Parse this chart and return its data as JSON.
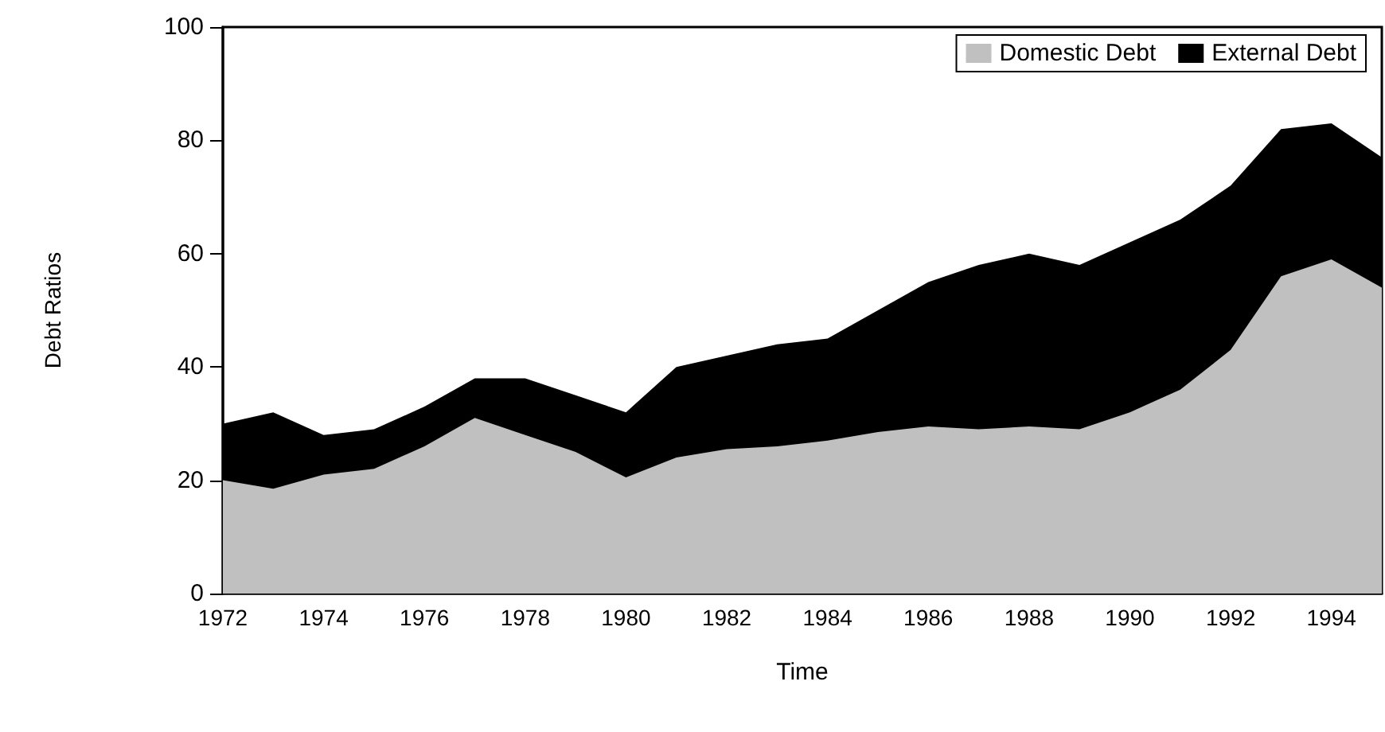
{
  "chart_data": {
    "type": "area",
    "stacked": true,
    "xlabel": "Time",
    "ylabel": "Debt Ratios",
    "x": [
      1972,
      1973,
      1974,
      1975,
      1976,
      1977,
      1978,
      1979,
      1980,
      1981,
      1982,
      1983,
      1984,
      1985,
      1986,
      1987,
      1988,
      1989,
      1990,
      1991,
      1992,
      1993,
      1994,
      1995
    ],
    "series": [
      {
        "name": "Domestic Debt",
        "color": "#c0c0c0",
        "values": [
          20,
          18.5,
          21,
          22,
          26,
          31,
          28,
          25,
          20.5,
          24,
          25.5,
          26,
          27,
          28.5,
          29.5,
          29,
          29.5,
          29,
          32,
          36,
          43,
          56,
          59,
          54
        ]
      },
      {
        "name": "External Debt",
        "color": "#000000",
        "values": [
          10,
          13.5,
          7,
          7,
          7,
          7,
          10,
          10,
          11.5,
          16,
          16.5,
          18,
          18,
          21.5,
          25.5,
          29,
          30.5,
          29,
          30,
          30,
          29,
          26,
          24,
          23
        ]
      }
    ],
    "xlim": [
      1972,
      1995
    ],
    "xticks": [
      1972,
      1974,
      1976,
      1978,
      1980,
      1982,
      1984,
      1986,
      1988,
      1990,
      1992,
      1994
    ],
    "ylim": [
      0,
      100
    ],
    "yticks": [
      0,
      20,
      40,
      60,
      80,
      100
    ],
    "grid": false,
    "legend": "top right"
  }
}
